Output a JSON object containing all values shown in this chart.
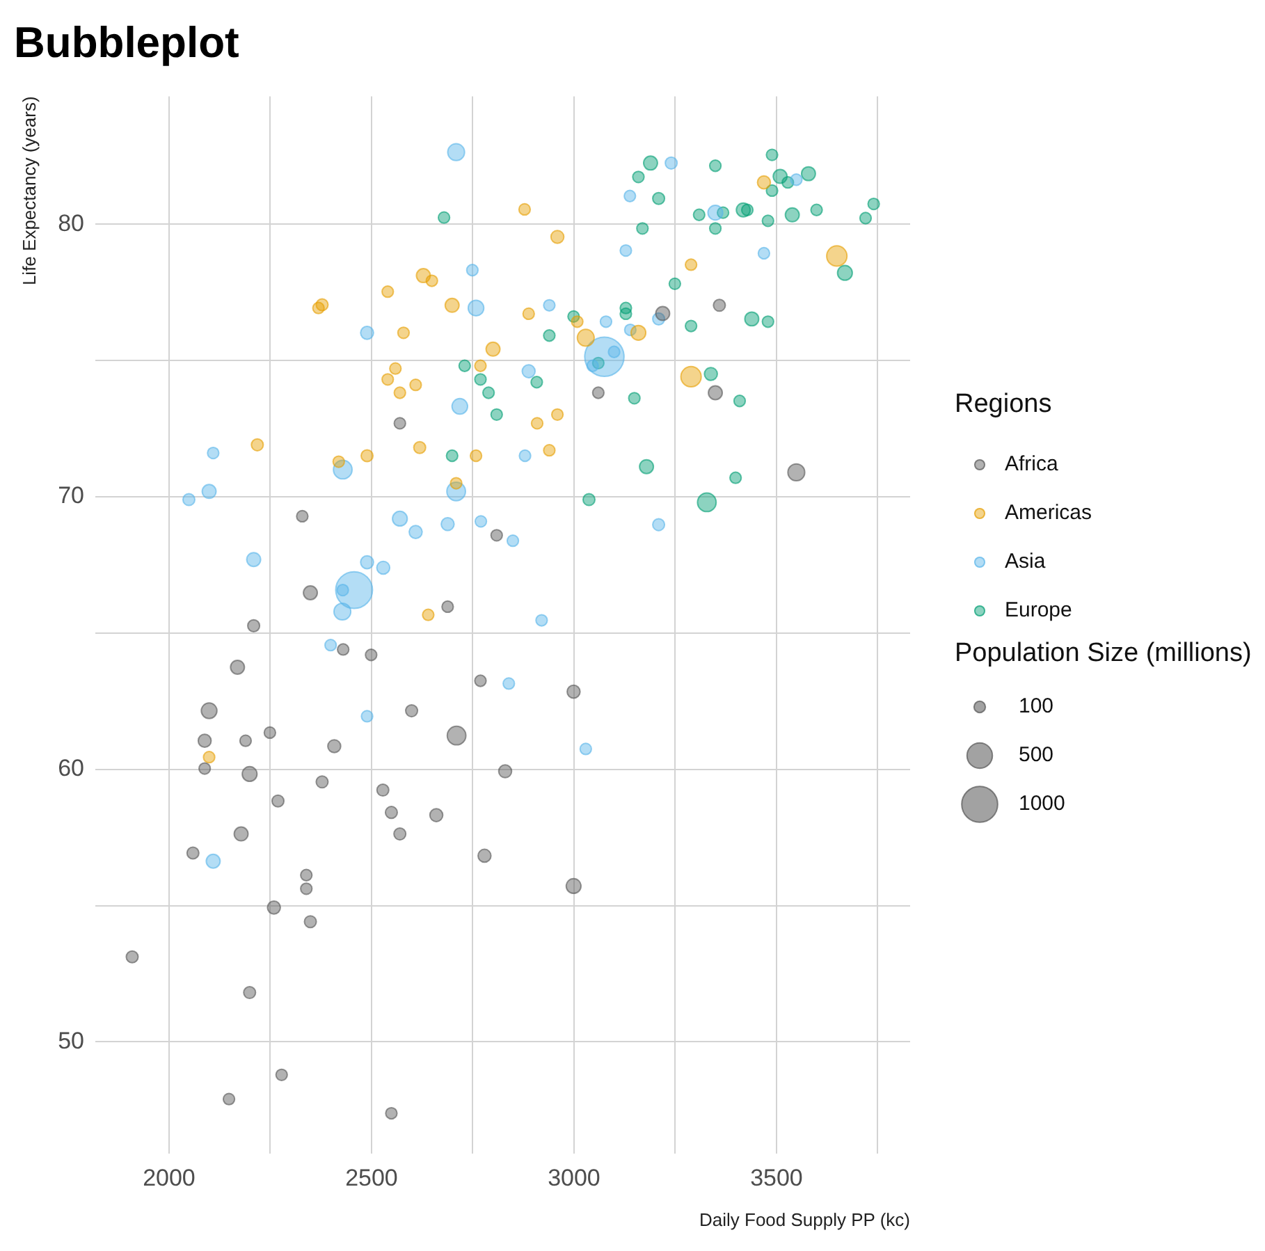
{
  "chart_data": {
    "type": "bubble",
    "title": "Bubbleplot",
    "xlabel": "Daily Food Supply PP (kc)",
    "ylabel": "Life Expectancy (years)",
    "legend_title": "Regions",
    "annotations": [
      "Population Size (millions)"
    ],
    "legend": "right",
    "grid": true,
    "marker": "circle",
    "xlim": [
      1818,
      3830
    ],
    "ylim": [
      45.9,
      84.7
    ],
    "xticks": [
      2000,
      {
        "value": 2250,
        "label": null
      },
      2500,
      {
        "value": 2750,
        "label": null
      },
      3000,
      {
        "value": 3250,
        "label": null
      },
      3500,
      {
        "value": 3750,
        "label": null
      }
    ],
    "yticks": [
      50,
      {
        "value": 55,
        "label": null
      },
      60,
      {
        "value": 65,
        "label": null
      },
      70,
      {
        "value": 75,
        "label": null
      },
      80
    ],
    "size_legend": [
      100,
      500,
      1000
    ],
    "series": [
      {
        "name": "Africa",
        "color": "#555555",
        "x": [
          2430,
          2499,
          2169,
          2099,
          2249,
          2088,
          2189,
          2408,
          2088,
          2199,
          2378,
          2269,
          2178,
          2059,
          2339,
          2339,
          2259,
          2349,
          1909,
          2199,
          2278,
          2148,
          2769,
          2999,
          2599,
          2710,
          2830,
          2528,
          2549,
          2660,
          2570,
          2779,
          2999,
          2549,
          2329,
          2349,
          2209,
          3060,
          2570,
          2809,
          2688,
          3219,
          3359,
          3349,
          3549
        ],
        "values": [
          64.4,
          64.2,
          63.75,
          62.15,
          61.35,
          61.05,
          61.05,
          60.85,
          60.03,
          59.83,
          59.54,
          58.84,
          57.63,
          56.93,
          56.12,
          55.62,
          54.93,
          54.41,
          53.12,
          51.81,
          48.79,
          47.9,
          63.25,
          62.85,
          62.15,
          61.24,
          59.93,
          59.24,
          58.42,
          58.32,
          57.63,
          56.83,
          55.72,
          47.38,
          69.29,
          66.48,
          65.27,
          73.82,
          72.7,
          68.59,
          65.97,
          76.73,
          77.03,
          73.82,
          70.9
        ],
        "sizes": [
          100,
          100,
          150,
          190,
          100,
          130,
          100,
          130,
          100,
          170,
          110,
          110,
          150,
          110,
          100,
          100,
          130,
          110,
          110,
          110,
          100,
          100,
          100,
          130,
          110,
          270,
          130,
          110,
          110,
          130,
          110,
          130,
          170,
          100,
          100,
          150,
          110,
          100,
          100,
          100,
          100,
          150,
          110,
          150,
          220
        ]
      },
      {
        "name": "Americas",
        "color": "#e69f00",
        "x": [
          2099,
          2378,
          2369,
          2218,
          2419,
          2489,
          2878,
          2959,
          2628,
          2649,
          2540,
          2699,
          2888,
          3008,
          2579,
          3029,
          2800,
          2769,
          2559,
          2540,
          2609,
          2570,
          2909,
          2959,
          2939,
          2758,
          2619,
          2709,
          2640,
          3469,
          3289,
          3649,
          3159,
          3289
        ],
        "values": [
          60.45,
          77.05,
          76.93,
          71.91,
          71.29,
          71.51,
          80.55,
          79.54,
          78.12,
          77.93,
          77.53,
          77.03,
          76.72,
          76.43,
          76.02,
          75.84,
          75.42,
          74.81,
          74.71,
          74.31,
          74.11,
          73.82,
          72.7,
          73.02,
          71.71,
          71.51,
          71.81,
          70.5,
          65.67,
          81.54,
          78.52,
          78.84,
          76.02,
          74.41
        ],
        "sizes": [
          100,
          110,
          100,
          110,
          100,
          110,
          100,
          130,
          150,
          100,
          100,
          150,
          100,
          100,
          100,
          220,
          150,
          100,
          100,
          100,
          100,
          100,
          100,
          100,
          100,
          100,
          110,
          100,
          100,
          130,
          100,
          320,
          170,
          320
        ]
      },
      {
        "name": "Asia",
        "color": "#56b4e9",
        "x": [
          2399,
          2489,
          2109,
          2839,
          3029,
          2489,
          2109,
          2429,
          2099,
          2049,
          2209,
          2489,
          2457,
          2429,
          2428,
          2709,
          3138,
          3128,
          2749,
          2758,
          2939,
          3079,
          3139,
          3075,
          3099,
          3046,
          2888,
          2718,
          2879,
          2709,
          2570,
          2609,
          2688,
          2770,
          2849,
          2529,
          2920,
          3240,
          3549,
          3349,
          3469,
          3209,
          3209
        ],
        "values": [
          64.56,
          61.95,
          56.63,
          63.15,
          60.75,
          76.02,
          71.61,
          71.0,
          70.2,
          69.9,
          67.7,
          67.6,
          66.58,
          66.58,
          65.79,
          82.65,
          81.04,
          79.04,
          78.32,
          76.93,
          77.03,
          76.43,
          76.13,
          75.14,
          75.32,
          74.81,
          74.61,
          73.32,
          71.51,
          70.2,
          69.2,
          68.71,
          69.0,
          69.1,
          68.39,
          67.4,
          65.47,
          82.25,
          81.64,
          80.43,
          78.94,
          76.53,
          68.98
        ],
        "sizes": [
          100,
          100,
          150,
          100,
          100,
          130,
          100,
          270,
          150,
          110,
          150,
          130,
          1050,
          100,
          220,
          220,
          100,
          100,
          100,
          190,
          100,
          100,
          100,
          1200,
          100,
          100,
          130,
          190,
          100,
          270,
          170,
          130,
          130,
          100,
          100,
          130,
          100,
          110,
          100,
          170,
          100,
          110,
          110
        ]
      },
      {
        "name": "Europe",
        "color": "#009e73",
        "x": [
          2679,
          3128,
          3128,
          2999,
          2939,
          3060,
          2730,
          2769,
          2789,
          2908,
          3149,
          2809,
          2699,
          3037,
          3189,
          3159,
          3209,
          3349,
          3489,
          3509,
          3528,
          3579,
          3489,
          3309,
          3368,
          3418,
          3428,
          3479,
          3539,
          3599,
          3720,
          3740,
          3169,
          3349,
          3669,
          3249,
          3289,
          3439,
          3479,
          3338,
          3409,
          3179,
          3399,
          3328
        ],
        "values": [
          80.25,
          76.93,
          76.72,
          76.62,
          75.92,
          74.91,
          74.81,
          74.31,
          73.82,
          74.21,
          73.62,
          73.02,
          71.51,
          69.9,
          82.25,
          81.74,
          80.95,
          82.15,
          82.55,
          81.76,
          81.54,
          81.86,
          81.24,
          80.35,
          80.43,
          80.53,
          80.53,
          80.13,
          80.35,
          80.53,
          80.23,
          80.75,
          79.85,
          79.85,
          78.22,
          77.82,
          76.27,
          76.53,
          76.43,
          74.51,
          73.52,
          71.11,
          70.7,
          69.8
        ],
        "sizes": [
          100,
          100,
          100,
          100,
          100,
          100,
          100,
          100,
          100,
          100,
          100,
          100,
          100,
          110,
          150,
          100,
          110,
          100,
          100,
          150,
          100,
          150,
          100,
          100,
          100,
          150,
          100,
          100,
          150,
          100,
          100,
          100,
          100,
          100,
          170,
          100,
          100,
          150,
          100,
          130,
          100,
          150,
          100,
          270
        ]
      }
    ]
  }
}
